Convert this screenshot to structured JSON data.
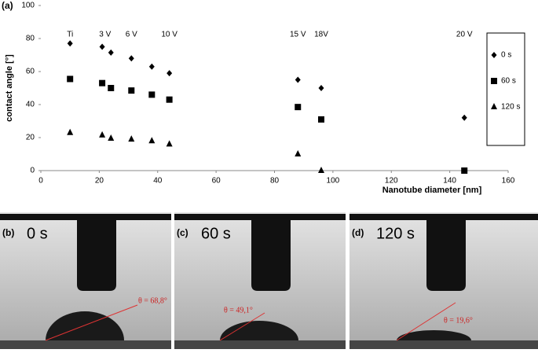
{
  "chart_data": {
    "type": "scatter",
    "panel_label": "(a)",
    "xlabel": "Nanotube diameter [nm]",
    "ylabel": "contact angle [°]",
    "xlim": [
      0,
      160
    ],
    "xticks": [
      0,
      20,
      40,
      60,
      80,
      100,
      120,
      140,
      160
    ],
    "ylim": [
      0,
      100
    ],
    "yticks": [
      0,
      20,
      40,
      60,
      80,
      100
    ],
    "grid": false,
    "legend": "right",
    "x": [
      10,
      21,
      24,
      31,
      38,
      44,
      88,
      96,
      145
    ],
    "series": [
      {
        "name": "0 s",
        "color": "#000000",
        "marker": "diamond",
        "values": [
          77,
          75,
          71.5,
          68,
          63,
          59,
          55,
          50,
          32
        ]
      },
      {
        "name": "60 s",
        "color": "#000000",
        "marker": "square",
        "values": [
          55.5,
          53,
          50,
          48.5,
          46,
          43,
          38.5,
          31,
          0
        ]
      },
      {
        "name": "120 s",
        "color": "#000000",
        "marker": "triangle",
        "values": [
          23,
          21.5,
          19.5,
          19,
          18,
          16,
          10,
          0,
          null
        ]
      }
    ],
    "annotations": [
      {
        "text": "Ti",
        "x": 10
      },
      {
        "text": "3 V",
        "x": 22
      },
      {
        "text": "6 V",
        "x": 31
      },
      {
        "text": "10 V",
        "x": 44
      },
      {
        "text": "15 V",
        "x": 88
      },
      {
        "text": "18V",
        "x": 96
      },
      {
        "text": "20 V",
        "x": 145
      }
    ]
  },
  "panels": [
    {
      "label": "(b)",
      "time": "0 s",
      "angle": "θ = 68,8°"
    },
    {
      "label": "(c)",
      "time": "60 s",
      "angle": "θ = 49,1°"
    },
    {
      "label": "(d)",
      "time": "120 s",
      "angle": "θ = 19,6°"
    }
  ]
}
